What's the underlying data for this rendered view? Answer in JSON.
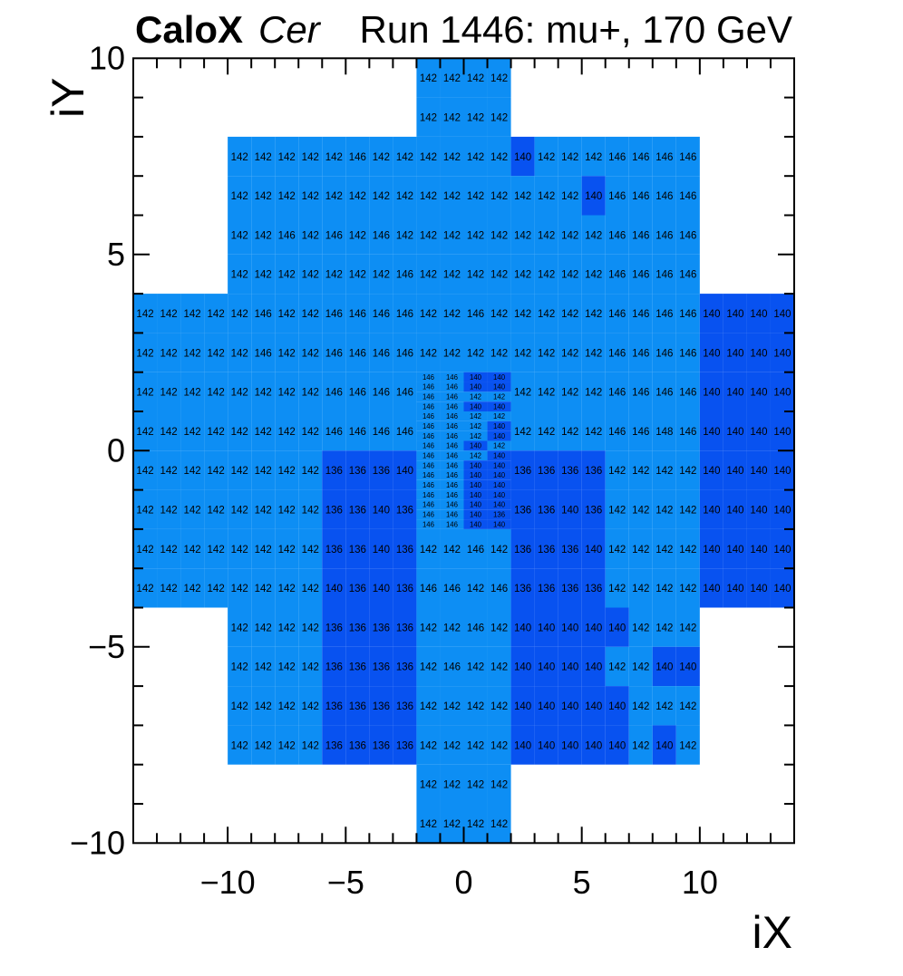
{
  "header": {
    "left_title_bold": "CaloX",
    "left_title_italic": "Cer",
    "right_title": "Run 1446: mu+, 170 GeV"
  },
  "axes": {
    "x_title": "iX",
    "y_title": "iY",
    "x_range": [
      -14,
      14
    ],
    "y_range": [
      -10,
      10
    ],
    "x_tick_values": [
      -10,
      -5,
      0,
      5,
      10
    ],
    "x_tick_labels": [
      "−10",
      "−5",
      "0",
      "5",
      "10"
    ],
    "y_tick_values": [
      10,
      5,
      0,
      -5,
      -10
    ],
    "y_tick_labels": [
      "10",
      "5",
      "0",
      "−5",
      "−10"
    ],
    "minor_tick_step": 1
  },
  "chart_data": {
    "type": "heatmap",
    "title": "Run 1446: mu+, 170 GeV",
    "detector": "CaloX Cer",
    "palette": {
      "light": "#0d8ef4",
      "dark": "#0852f0",
      "dark_max_value": 140,
      "cell_text_color": "#000000"
    },
    "rows": [
      {
        "y": 10,
        "x": -2,
        "h": 1,
        "v": [
          142,
          142,
          142,
          142
        ]
      },
      {
        "y": 9,
        "x": -2,
        "h": 1,
        "v": [
          142,
          142,
          142,
          142
        ]
      },
      {
        "y": 8,
        "x": -10,
        "h": 1,
        "v": [
          142,
          142,
          142,
          142,
          142,
          146,
          142,
          142,
          142,
          142,
          142,
          142,
          140,
          142,
          142,
          142,
          146,
          146,
          146,
          146
        ]
      },
      {
        "y": 7,
        "x": -10,
        "h": 1,
        "v": [
          142,
          142,
          142,
          142,
          142,
          142,
          142,
          142,
          142,
          142,
          142,
          142,
          142,
          142,
          142,
          140,
          146,
          146,
          146,
          146
        ]
      },
      {
        "y": 6,
        "x": -10,
        "h": 1,
        "v": [
          142,
          142,
          146,
          142,
          146,
          142,
          146,
          142,
          142,
          142,
          142,
          142,
          142,
          142,
          142,
          142,
          146,
          146,
          146,
          146
        ]
      },
      {
        "y": 5,
        "x": -10,
        "h": 1,
        "v": [
          142,
          142,
          142,
          142,
          142,
          142,
          142,
          146,
          142,
          142,
          142,
          142,
          142,
          142,
          142,
          142,
          146,
          146,
          146,
          146
        ]
      },
      {
        "y": 4,
        "x": -14,
        "h": 1,
        "v": [
          142,
          142,
          142,
          142,
          142,
          146,
          142,
          142,
          146,
          146,
          146,
          146,
          142,
          142,
          146,
          142,
          142,
          142,
          142,
          142,
          146,
          146,
          146,
          146,
          140,
          140,
          140,
          140
        ]
      },
      {
        "y": 3,
        "x": -14,
        "h": 1,
        "v": [
          142,
          142,
          142,
          142,
          142,
          146,
          142,
          142,
          146,
          146,
          146,
          146,
          142,
          142,
          142,
          142,
          142,
          142,
          142,
          142,
          146,
          146,
          146,
          146,
          140,
          140,
          140,
          140
        ]
      },
      {
        "y": 2,
        "x": -14,
        "h": 1,
        "v": [
          142,
          142,
          142,
          142,
          142,
          142,
          142,
          142,
          146,
          146,
          146,
          146
        ]
      },
      {
        "y": 2,
        "x": 2,
        "h": 1,
        "v": [
          142,
          142,
          142,
          142,
          146,
          146,
          146,
          146,
          140,
          140,
          140,
          140
        ]
      },
      {
        "y": 1,
        "x": -14,
        "h": 1,
        "v": [
          142,
          142,
          142,
          142,
          142,
          142,
          142,
          142,
          146,
          146,
          146,
          146
        ]
      },
      {
        "y": 1,
        "x": 2,
        "h": 1,
        "v": [
          142,
          142,
          142,
          142,
          146,
          146,
          148,
          146,
          140,
          140,
          140,
          140
        ]
      },
      {
        "y": 0,
        "x": -14,
        "h": 1,
        "v": [
          142,
          142,
          142,
          142,
          142,
          142,
          142,
          142,
          136,
          136,
          136,
          140
        ]
      },
      {
        "y": 0,
        "x": 2,
        "h": 1,
        "v": [
          136,
          136,
          136,
          136,
          142,
          142,
          142,
          142,
          140,
          140,
          140,
          140
        ]
      },
      {
        "y": -1,
        "x": -14,
        "h": 1,
        "v": [
          142,
          142,
          142,
          142,
          142,
          142,
          142,
          142,
          136,
          136,
          140,
          136
        ]
      },
      {
        "y": -1,
        "x": 2,
        "h": 1,
        "v": [
          136,
          136,
          140,
          136,
          142,
          142,
          142,
          142,
          140,
          140,
          140,
          140
        ]
      },
      {
        "y": -2,
        "x": -14,
        "h": 1,
        "v": [
          142,
          142,
          142,
          142,
          142,
          142,
          142,
          142,
          136,
          136,
          140,
          136,
          142,
          142,
          146,
          142,
          136,
          136,
          136,
          140,
          142,
          142,
          142,
          142,
          140,
          140,
          140,
          140
        ]
      },
      {
        "y": -3,
        "x": -14,
        "h": 1,
        "v": [
          142,
          142,
          142,
          142,
          142,
          142,
          142,
          142,
          140,
          136,
          140,
          136,
          146,
          146,
          142,
          146,
          136,
          136,
          136,
          136,
          142,
          142,
          142,
          142,
          140,
          140,
          140,
          140
        ]
      },
      {
        "y": -4,
        "x": -10,
        "h": 1,
        "v": [
          142,
          142,
          142,
          142,
          136,
          136,
          136,
          136,
          142,
          142,
          146,
          142,
          140,
          140,
          140,
          140,
          140,
          142,
          142,
          142
        ]
      },
      {
        "y": -5,
        "x": -10,
        "h": 1,
        "v": [
          142,
          142,
          142,
          142,
          136,
          136,
          136,
          136,
          142,
          146,
          142,
          142,
          140,
          140,
          140,
          140,
          142,
          142,
          140,
          140
        ]
      },
      {
        "y": -6,
        "x": -10,
        "h": 1,
        "v": [
          142,
          142,
          142,
          142,
          136,
          136,
          136,
          136,
          142,
          142,
          142,
          142,
          140,
          140,
          140,
          140,
          140,
          142,
          142,
          142
        ]
      },
      {
        "y": -7,
        "x": -10,
        "h": 1,
        "v": [
          142,
          142,
          142,
          142,
          136,
          136,
          136,
          136,
          142,
          142,
          142,
          142,
          140,
          140,
          140,
          140,
          140,
          142,
          140,
          142
        ]
      },
      {
        "y": -8,
        "x": -2,
        "h": 1,
        "v": [
          142,
          142,
          142,
          142
        ]
      },
      {
        "y": -9,
        "x": -2,
        "h": 1,
        "v": [
          142,
          142,
          142,
          142
        ]
      },
      {
        "y": 2.0,
        "x": -2,
        "h": 0.25,
        "v": [
          146,
          146,
          140,
          140
        ]
      },
      {
        "y": 1.75,
        "x": -2,
        "h": 0.25,
        "v": [
          146,
          146,
          140,
          140
        ]
      },
      {
        "y": 1.5,
        "x": -2,
        "h": 0.25,
        "v": [
          146,
          146,
          142,
          142
        ]
      },
      {
        "y": 1.25,
        "x": -2,
        "h": 0.25,
        "v": [
          146,
          146,
          140,
          140
        ]
      },
      {
        "y": 1.0,
        "x": -2,
        "h": 0.25,
        "v": [
          146,
          146,
          142,
          142
        ]
      },
      {
        "y": 0.75,
        "x": -2,
        "h": 0.25,
        "v": [
          146,
          146,
          142,
          140
        ]
      },
      {
        "y": 0.5,
        "x": -2,
        "h": 0.25,
        "v": [
          146,
          146,
          142,
          140
        ]
      },
      {
        "y": 0.25,
        "x": -2,
        "h": 0.25,
        "v": [
          146,
          146,
          140,
          142
        ]
      },
      {
        "y": 0.0,
        "x": -2,
        "h": 0.25,
        "v": [
          146,
          146,
          142,
          140
        ]
      },
      {
        "y": -0.25,
        "x": -2,
        "h": 0.25,
        "v": [
          146,
          146,
          140,
          140
        ]
      },
      {
        "y": -0.5,
        "x": -2,
        "h": 0.25,
        "v": [
          146,
          146,
          140,
          140
        ]
      },
      {
        "y": -0.75,
        "x": -2,
        "h": 0.25,
        "v": [
          146,
          146,
          140,
          140
        ]
      },
      {
        "y": -1.0,
        "x": -2,
        "h": 0.25,
        "v": [
          146,
          146,
          140,
          140
        ]
      },
      {
        "y": -1.25,
        "x": -2,
        "h": 0.25,
        "v": [
          146,
          146,
          140,
          140
        ]
      },
      {
        "y": -1.5,
        "x": -2,
        "h": 0.25,
        "v": [
          146,
          146,
          140,
          136
        ]
      },
      {
        "y": -1.75,
        "x": -2,
        "h": 0.25,
        "v": [
          146,
          146,
          140,
          140
        ]
      }
    ]
  }
}
